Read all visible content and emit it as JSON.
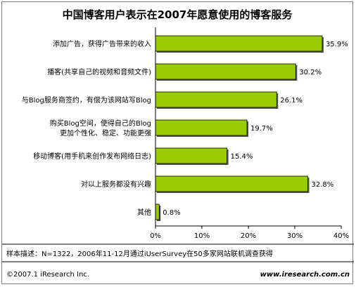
{
  "chart_data": {
    "type": "bar",
    "orientation": "horizontal",
    "title": "中国博客用户表示在2007年愿意使用的博客服务",
    "categories": [
      [
        "添加广告，获得广告带来的收入"
      ],
      [
        "播客(共享自己的视频和音频文件)"
      ],
      [
        "与Blog服务商签约，有偿为该网站写Blog"
      ],
      [
        "购买Blog空间，使得自己的Blog",
        "更加个性化、稳定、功能更强"
      ],
      [
        "移动博客(用手机来创作发布网络日志)"
      ],
      [
        "对以上服务都没有兴趣"
      ],
      [
        "其他"
      ]
    ],
    "values": [
      35.9,
      30.2,
      26.1,
      19.7,
      15.4,
      32.8,
      0.8
    ],
    "value_labels": [
      "35.9%",
      "30.2%",
      "26.1%",
      "19.7%",
      "15.4%",
      "32.8%",
      "0.8%"
    ],
    "xlim": [
      0,
      40
    ],
    "xticks": [
      "0%",
      "10%",
      "20%",
      "30%",
      "40%"
    ],
    "bar_color": "#99cc00",
    "grid": false
  },
  "note": "样本描述：N=1322，2006年11-12月通过iUserSurvey在50多家网站联机调查获得",
  "footer": {
    "copyright": "©2007.1 iResearch Inc.",
    "url": "www.iresearch.com.cn"
  }
}
